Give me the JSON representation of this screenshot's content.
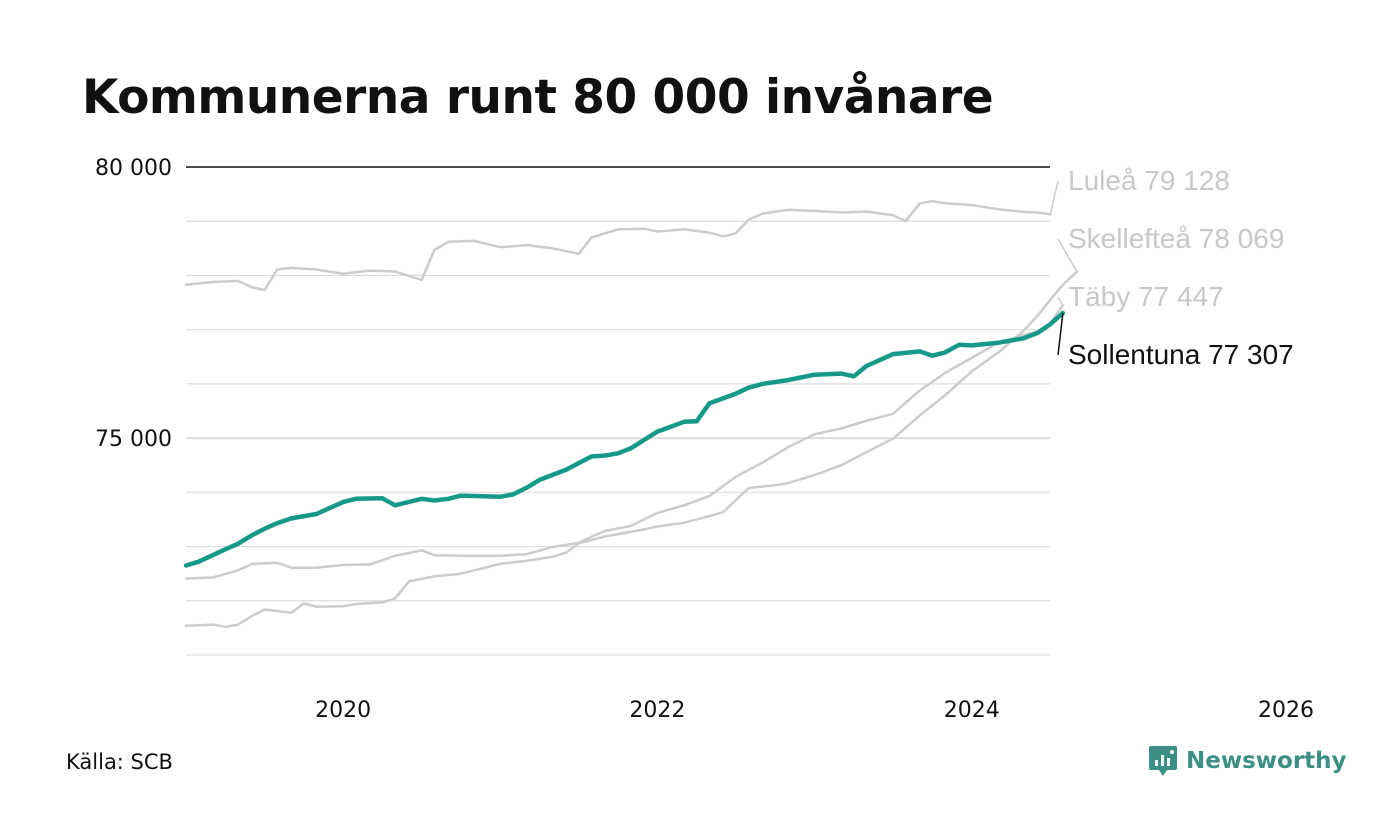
{
  "title": "Kommunerna runt 80 000 invånare",
  "source": "Källa: SCB",
  "brand": "Newsworthy",
  "chart_data": {
    "type": "line",
    "xlim": [
      2019.0,
      2026.0
    ],
    "ylim": [
      71000,
      80000
    ],
    "x_ticks": [
      2020,
      2022,
      2024,
      2026
    ],
    "x_tick_labels": [
      "2020",
      "2022",
      "2024",
      "2026"
    ],
    "y_gridlines": [
      71000,
      72000,
      73000,
      74000,
      75000,
      76000,
      77000,
      78000,
      79000,
      80000
    ],
    "y_tick_labels": [
      {
        "value": 75000,
        "label": "75 000"
      },
      {
        "value": 80000,
        "label": "80 000"
      }
    ],
    "colors": {
      "highlight": "#17998a",
      "context": "#cccccc",
      "top_line": "#111111",
      "grid": "#dddddd"
    },
    "series": [
      {
        "name": "Luleå",
        "label": "Luleå 79 128",
        "highlight": false,
        "points": [
          [
            2019.0,
            77830
          ],
          [
            2019.17,
            77880
          ],
          [
            2019.33,
            77900
          ],
          [
            2019.42,
            77780
          ],
          [
            2019.5,
            77730
          ],
          [
            2019.58,
            78110
          ],
          [
            2019.67,
            78140
          ],
          [
            2019.83,
            78110
          ],
          [
            2020.0,
            78030
          ],
          [
            2020.17,
            78090
          ],
          [
            2020.33,
            78070
          ],
          [
            2020.5,
            77920
          ],
          [
            2020.58,
            78470
          ],
          [
            2020.67,
            78620
          ],
          [
            2020.83,
            78640
          ],
          [
            2021.0,
            78520
          ],
          [
            2021.17,
            78560
          ],
          [
            2021.33,
            78500
          ],
          [
            2021.5,
            78400
          ],
          [
            2021.58,
            78700
          ],
          [
            2021.75,
            78850
          ],
          [
            2021.92,
            78860
          ],
          [
            2022.0,
            78810
          ],
          [
            2022.17,
            78850
          ],
          [
            2022.33,
            78790
          ],
          [
            2022.42,
            78720
          ],
          [
            2022.5,
            78780
          ],
          [
            2022.58,
            79030
          ],
          [
            2022.67,
            79140
          ],
          [
            2022.83,
            79210
          ],
          [
            2023.0,
            79190
          ],
          [
            2023.17,
            79160
          ],
          [
            2023.33,
            79180
          ],
          [
            2023.5,
            79110
          ],
          [
            2023.58,
            79000
          ],
          [
            2023.67,
            79330
          ],
          [
            2023.75,
            79370
          ],
          [
            2023.83,
            79330
          ],
          [
            2024.0,
            79300
          ],
          [
            2024.17,
            79220
          ],
          [
            2024.33,
            79170
          ],
          [
            2024.42,
            79160
          ],
          [
            2024.5,
            79128
          ]
        ]
      },
      {
        "name": "Skellefteå",
        "label": "Skellefteå 78 069",
        "highlight": false,
        "points": [
          [
            2019.0,
            71540
          ],
          [
            2019.17,
            71560
          ],
          [
            2019.25,
            71520
          ],
          [
            2019.33,
            71560
          ],
          [
            2019.42,
            71720
          ],
          [
            2019.5,
            71840
          ],
          [
            2019.67,
            71780
          ],
          [
            2019.75,
            71950
          ],
          [
            2019.83,
            71890
          ],
          [
            2020.0,
            71900
          ],
          [
            2020.08,
            71940
          ],
          [
            2020.25,
            71970
          ],
          [
            2020.33,
            72040
          ],
          [
            2020.42,
            72360
          ],
          [
            2020.58,
            72450
          ],
          [
            2020.75,
            72500
          ],
          [
            2020.83,
            72560
          ],
          [
            2021.0,
            72680
          ],
          [
            2021.17,
            72740
          ],
          [
            2021.33,
            72810
          ],
          [
            2021.42,
            72890
          ],
          [
            2021.5,
            73060
          ],
          [
            2021.67,
            73190
          ],
          [
            2021.75,
            73230
          ],
          [
            2021.92,
            73320
          ],
          [
            2022.0,
            73370
          ],
          [
            2022.17,
            73440
          ],
          [
            2022.33,
            73560
          ],
          [
            2022.42,
            73640
          ],
          [
            2022.58,
            74080
          ],
          [
            2022.75,
            74130
          ],
          [
            2022.83,
            74170
          ],
          [
            2023.0,
            74320
          ],
          [
            2023.17,
            74500
          ],
          [
            2023.33,
            74740
          ],
          [
            2023.5,
            74990
          ],
          [
            2023.67,
            75420
          ],
          [
            2023.83,
            75790
          ],
          [
            2024.0,
            76230
          ],
          [
            2024.17,
            76580
          ],
          [
            2024.33,
            76980
          ],
          [
            2024.42,
            77260
          ],
          [
            2024.5,
            77550
          ],
          [
            2024.58,
            77830
          ],
          [
            2024.67,
            78069
          ]
        ]
      },
      {
        "name": "Täby",
        "label": "Täby 77 447",
        "highlight": false,
        "points": [
          [
            2019.0,
            72410
          ],
          [
            2019.17,
            72430
          ],
          [
            2019.33,
            72560
          ],
          [
            2019.42,
            72680
          ],
          [
            2019.58,
            72700
          ],
          [
            2019.67,
            72610
          ],
          [
            2019.83,
            72610
          ],
          [
            2020.0,
            72660
          ],
          [
            2020.17,
            72670
          ],
          [
            2020.33,
            72830
          ],
          [
            2020.5,
            72930
          ],
          [
            2020.58,
            72840
          ],
          [
            2020.75,
            72830
          ],
          [
            2021.0,
            72830
          ],
          [
            2021.17,
            72860
          ],
          [
            2021.33,
            72990
          ],
          [
            2021.5,
            73070
          ],
          [
            2021.58,
            73180
          ],
          [
            2021.67,
            73290
          ],
          [
            2021.83,
            73380
          ],
          [
            2022.0,
            73620
          ],
          [
            2022.17,
            73760
          ],
          [
            2022.33,
            73930
          ],
          [
            2022.5,
            74290
          ],
          [
            2022.67,
            74550
          ],
          [
            2022.83,
            74830
          ],
          [
            2023.0,
            75070
          ],
          [
            2023.17,
            75180
          ],
          [
            2023.33,
            75320
          ],
          [
            2023.5,
            75450
          ],
          [
            2023.67,
            75880
          ],
          [
            2023.83,
            76200
          ],
          [
            2024.0,
            76480
          ],
          [
            2024.17,
            76760
          ],
          [
            2024.33,
            76900
          ],
          [
            2024.42,
            76970
          ],
          [
            2024.5,
            77120
          ],
          [
            2024.58,
            77447
          ]
        ]
      },
      {
        "name": "Sollentuna",
        "label": "Sollentuna 77 307",
        "highlight": true,
        "points": [
          [
            2019.0,
            72650
          ],
          [
            2019.08,
            72720
          ],
          [
            2019.17,
            72840
          ],
          [
            2019.25,
            72950
          ],
          [
            2019.33,
            73050
          ],
          [
            2019.42,
            73210
          ],
          [
            2019.5,
            73330
          ],
          [
            2019.58,
            73430
          ],
          [
            2019.67,
            73520
          ],
          [
            2019.83,
            73600
          ],
          [
            2020.0,
            73820
          ],
          [
            2020.08,
            73880
          ],
          [
            2020.25,
            73890
          ],
          [
            2020.33,
            73760
          ],
          [
            2020.5,
            73880
          ],
          [
            2020.58,
            73850
          ],
          [
            2020.67,
            73880
          ],
          [
            2020.75,
            73940
          ],
          [
            2021.0,
            73920
          ],
          [
            2021.08,
            73960
          ],
          [
            2021.17,
            74090
          ],
          [
            2021.25,
            74230
          ],
          [
            2021.42,
            74420
          ],
          [
            2021.58,
            74660
          ],
          [
            2021.67,
            74680
          ],
          [
            2021.75,
            74720
          ],
          [
            2021.83,
            74810
          ],
          [
            2022.0,
            75120
          ],
          [
            2022.17,
            75300
          ],
          [
            2022.25,
            75310
          ],
          [
            2022.33,
            75640
          ],
          [
            2022.5,
            75820
          ],
          [
            2022.58,
            75930
          ],
          [
            2022.67,
            76000
          ],
          [
            2022.83,
            76070
          ],
          [
            2023.0,
            76170
          ],
          [
            2023.17,
            76190
          ],
          [
            2023.25,
            76140
          ],
          [
            2023.33,
            76330
          ],
          [
            2023.5,
            76550
          ],
          [
            2023.67,
            76600
          ],
          [
            2023.75,
            76520
          ],
          [
            2023.83,
            76580
          ],
          [
            2023.92,
            76720
          ],
          [
            2024.0,
            76710
          ],
          [
            2024.17,
            76760
          ],
          [
            2024.33,
            76840
          ],
          [
            2024.42,
            76940
          ],
          [
            2024.5,
            77100
          ],
          [
            2024.58,
            77307
          ]
        ]
      }
    ]
  }
}
